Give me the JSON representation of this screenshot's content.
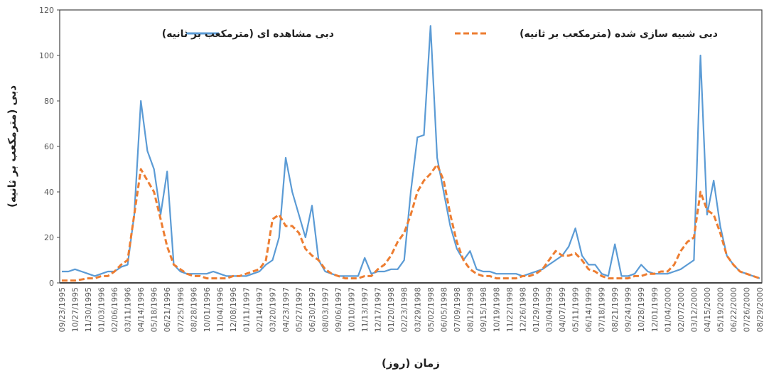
{
  "chart_data": {
    "type": "line",
    "xlabel": "زمان (روز)",
    "ylabel": "دبی (مترمکعب بر ثانیه)",
    "categories": [
      "09/23/1995",
      null,
      "10/27/1995",
      null,
      "11/30/1995",
      null,
      "01/03/1996",
      null,
      "02/06/1996",
      null,
      "03/11/1996",
      null,
      "04/14/1996",
      null,
      "05/18/1996",
      null,
      "06/21/1996",
      null,
      "07/25/1996",
      null,
      "08/28/1996",
      null,
      "10/01/1996",
      null,
      "11/04/1996",
      null,
      "12/08/1996",
      null,
      "01/11/1997",
      null,
      "02/14/1997",
      null,
      "03/20/1997",
      null,
      "04/23/1997",
      null,
      "05/27/1997",
      null,
      "06/30/1997",
      null,
      "08/03/1997",
      null,
      "09/06/1997",
      null,
      "10/10/1997",
      null,
      "11/13/1997",
      null,
      "12/17/1997",
      null,
      "01/20/1998",
      null,
      "02/23/1998",
      null,
      "03/29/1998",
      null,
      "05/02/1998",
      null,
      "06/05/1998",
      null,
      "07/09/1998",
      null,
      "08/12/1998",
      null,
      "09/15/1998",
      null,
      "10/19/1998",
      null,
      "11/22/1998",
      null,
      "12/26/1998",
      null,
      "01/29/1999",
      null,
      "03/04/1999",
      null,
      "04/07/1999",
      null,
      "05/11/1999",
      null,
      "06/14/1999",
      null,
      "07/18/1999",
      null,
      "08/21/1999",
      null,
      "09/24/1999",
      null,
      "10/28/1999",
      null,
      "12/01/1999",
      null,
      "01/04/2000",
      null,
      "02/07/2000",
      null,
      "03/12/2000",
      null,
      "04/15/2000",
      null,
      "05/19/2000",
      null,
      "06/22/2000",
      null,
      "07/26/2000",
      null,
      "08/29/2000"
    ],
    "series": [
      {
        "name": "دبی مشاهده ای (مترمکعب بر ثانیه)",
        "color": "#5b9bd5",
        "line_style": "solid",
        "values": [
          5,
          5,
          6,
          5,
          4,
          3,
          4,
          5,
          5,
          7,
          8,
          30,
          80,
          58,
          50,
          30,
          49,
          8,
          5,
          4,
          4,
          4,
          4,
          5,
          4,
          3,
          3,
          3,
          3,
          4,
          5,
          8,
          10,
          20,
          55,
          40,
          30,
          20,
          34,
          10,
          5,
          4,
          3,
          3,
          3,
          3,
          11,
          4,
          5,
          5,
          6,
          6,
          10,
          40,
          64,
          65,
          113,
          55,
          40,
          25,
          15,
          10,
          14,
          6,
          5,
          5,
          4,
          4,
          4,
          4,
          3,
          4,
          5,
          6,
          8,
          10,
          12,
          16,
          24,
          12,
          8,
          8,
          4,
          3,
          17,
          3,
          3,
          4,
          8,
          5,
          4,
          4,
          4,
          5,
          6,
          8,
          10,
          100,
          30,
          45,
          25,
          12,
          8,
          5,
          4,
          3,
          2
        ]
      },
      {
        "name": "دبی شبیه سازی شده (مترمکعب بر ثانیه)",
        "color": "#ed7d31",
        "line_style": "dashed",
        "values": [
          1,
          1,
          1,
          1.5,
          2,
          2,
          3,
          3,
          5,
          8,
          10,
          30,
          50,
          45,
          40,
          28,
          16,
          8,
          6,
          4,
          3,
          3,
          2,
          2,
          2,
          2,
          3,
          3,
          4,
          5,
          6,
          10,
          28,
          30,
          25,
          25,
          22,
          15,
          12,
          10,
          6,
          4,
          3,
          2,
          2,
          2,
          3,
          3,
          6,
          8,
          12,
          18,
          22,
          30,
          40,
          45,
          48,
          52,
          45,
          30,
          18,
          10,
          6,
          4,
          3,
          3,
          2,
          2,
          2,
          2,
          3,
          3,
          4,
          6,
          10,
          14,
          12,
          12,
          13,
          10,
          6,
          5,
          3,
          2,
          2,
          2,
          2,
          3,
          3,
          4,
          4,
          5,
          5,
          8,
          14,
          18,
          20,
          40,
          32,
          30,
          22,
          12,
          8,
          5,
          4,
          3,
          2
        ]
      }
    ],
    "ylim": [
      0,
      120
    ],
    "yticks": [
      0,
      20,
      40,
      60,
      80,
      100,
      120
    ],
    "grid": false
  }
}
